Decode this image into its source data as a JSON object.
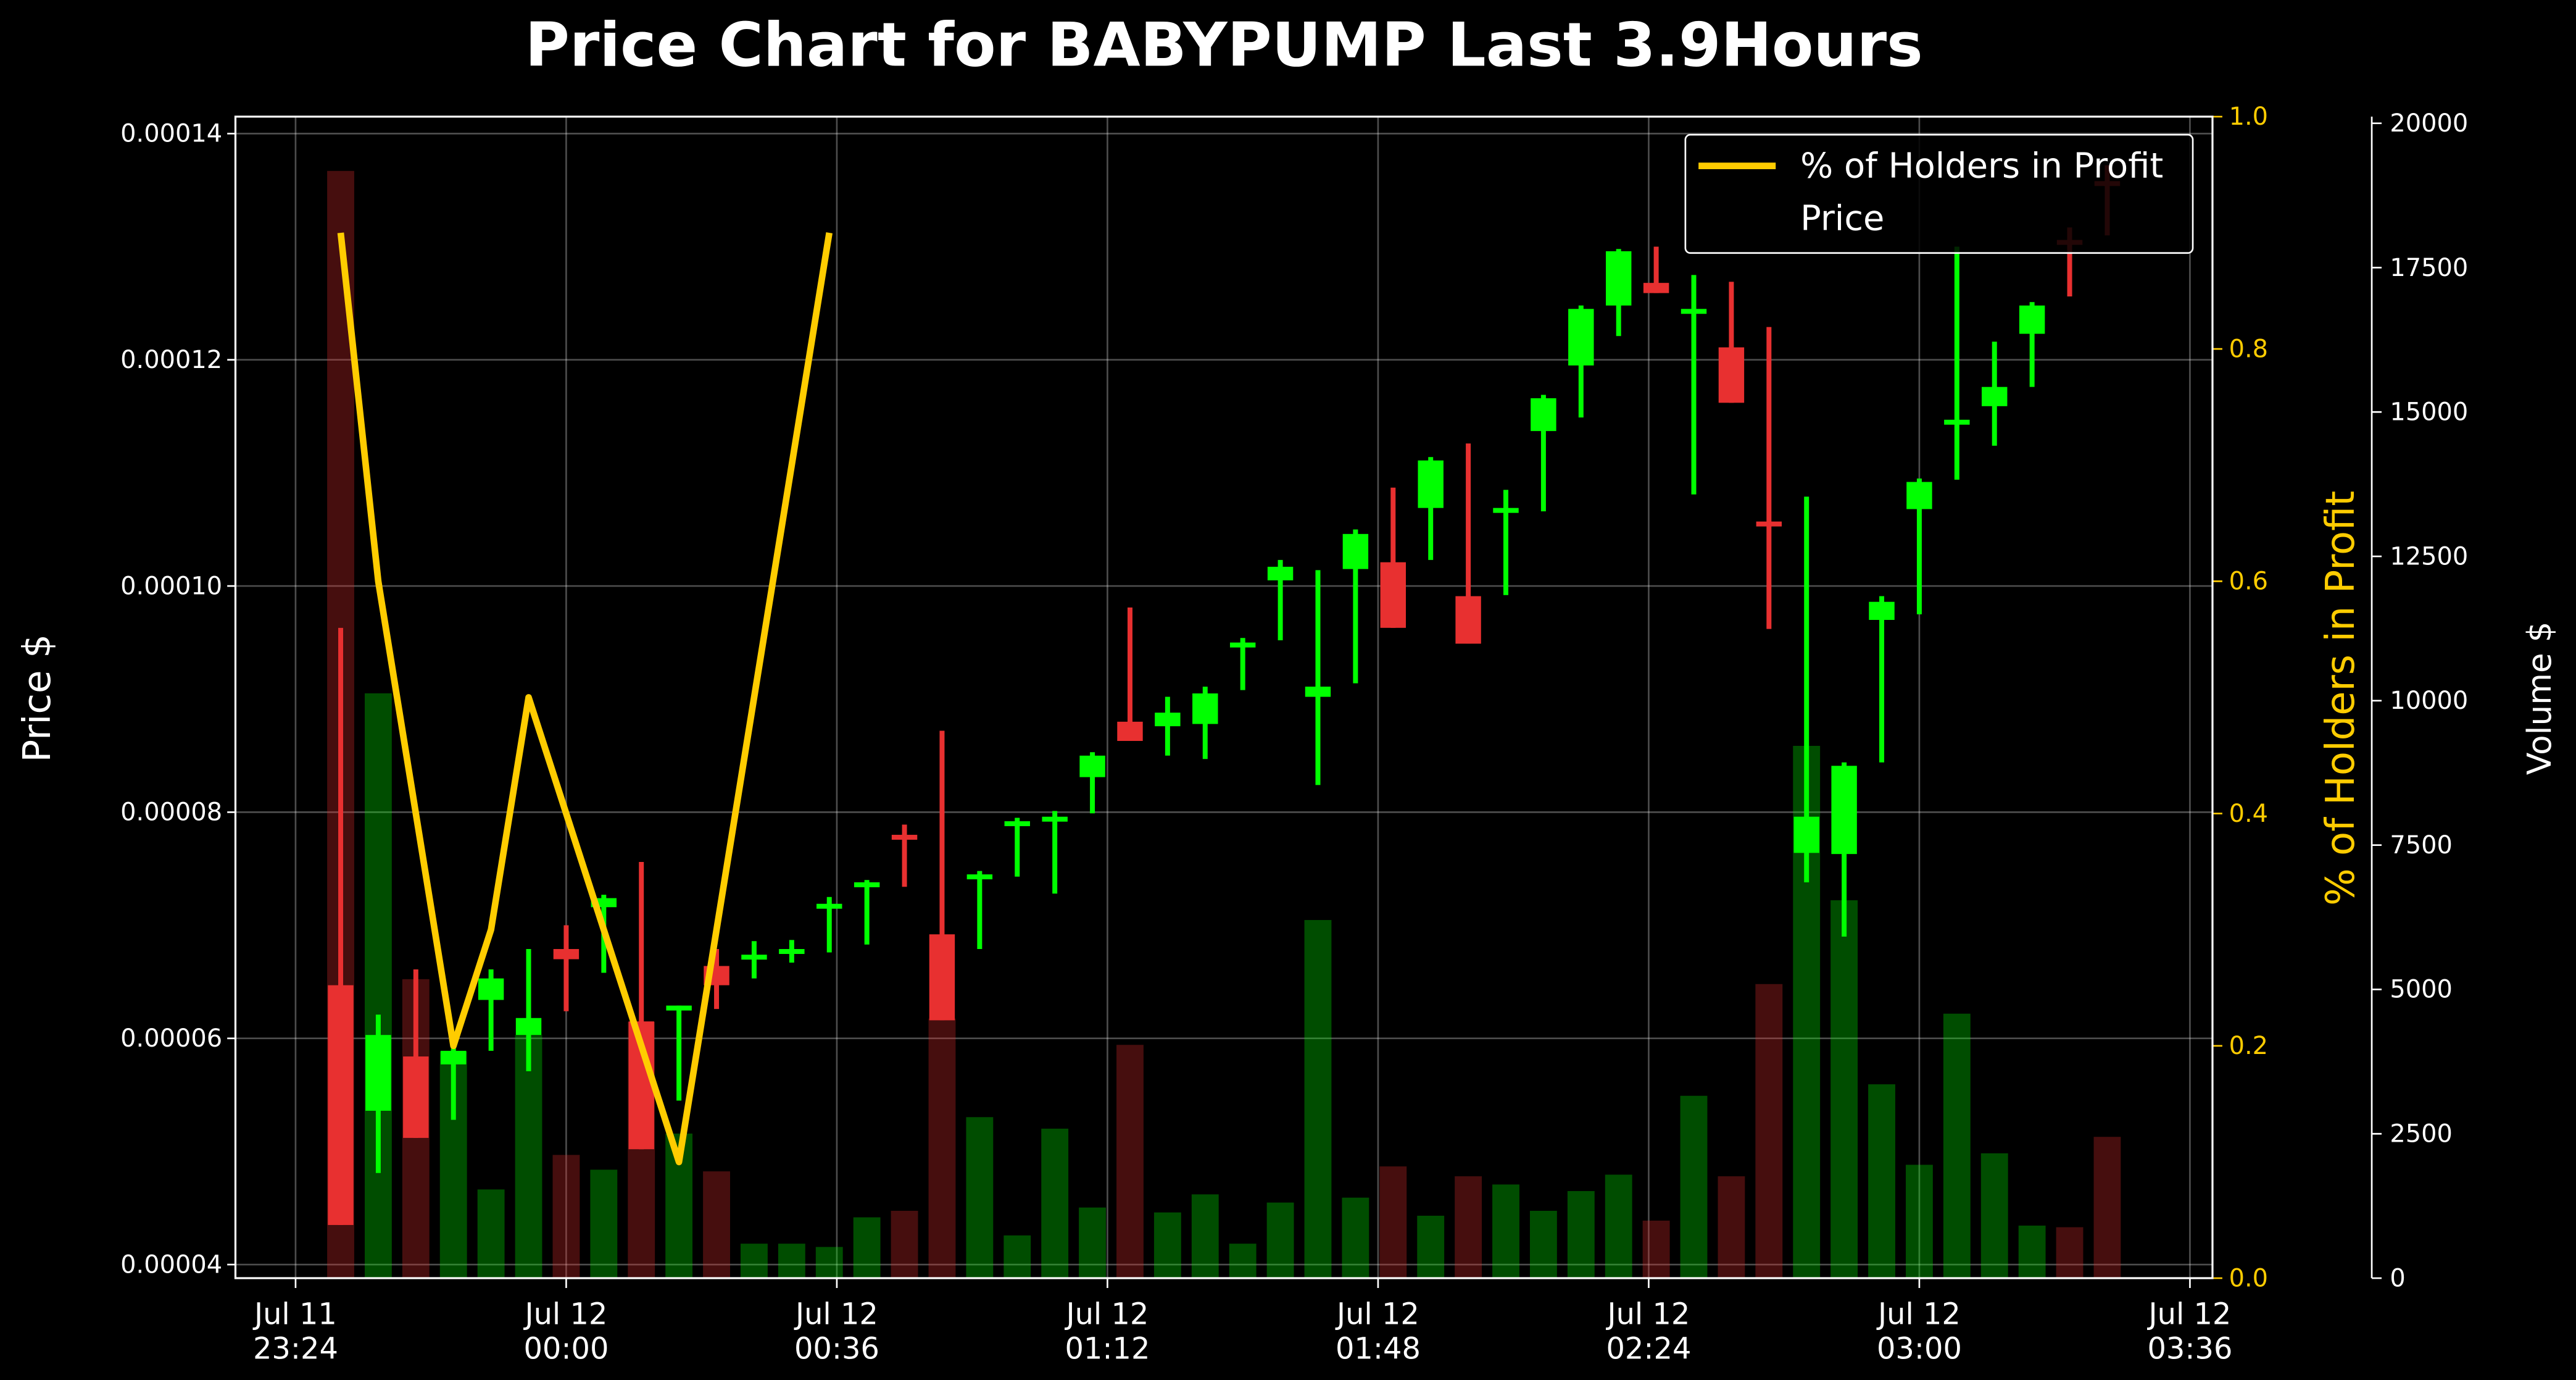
{
  "chart_data": {
    "type": "candlestick",
    "title": "Price Chart for BABYPUMP Last 3.9Hours",
    "ylabel": "Price $",
    "y2label": "% of Holders in Profit",
    "y3label": "Volume $",
    "x": [
      "Jul 11 23:30",
      "Jul 11 23:35",
      "Jul 11 23:40",
      "Jul 11 23:45",
      "Jul 11 23:50",
      "Jul 11 23:55",
      "Jul 12 00:00",
      "Jul 12 00:05",
      "Jul 12 00:10",
      "Jul 12 00:15",
      "Jul 12 00:20",
      "Jul 12 00:25",
      "Jul 12 00:30",
      "Jul 12 00:35",
      "Jul 12 00:40",
      "Jul 12 00:45",
      "Jul 12 00:50",
      "Jul 12 00:55",
      "Jul 12 01:00",
      "Jul 12 01:05",
      "Jul 12 01:10",
      "Jul 12 01:15",
      "Jul 12 01:20",
      "Jul 12 01:25",
      "Jul 12 01:30",
      "Jul 12 01:35",
      "Jul 12 01:40",
      "Jul 12 01:45",
      "Jul 12 01:50",
      "Jul 12 01:55",
      "Jul 12 02:00",
      "Jul 12 02:05",
      "Jul 12 02:10",
      "Jul 12 02:15",
      "Jul 12 02:20",
      "Jul 12 02:25",
      "Jul 12 02:30",
      "Jul 12 02:35",
      "Jul 12 02:40",
      "Jul 12 02:45",
      "Jul 12 02:50",
      "Jul 12 02:55",
      "Jul 12 03:00",
      "Jul 12 03:05",
      "Jul 12 03:10",
      "Jul 12 03:15",
      "Jul 12 03:20",
      "Jul 12 03:25"
    ],
    "xlim": [
      "Jul 11 23:16",
      "Jul 12 03:39"
    ],
    "xticks": [
      {
        "value": "Jul 11 23:24",
        "label": "Jul 11\n23:24"
      },
      {
        "value": "Jul 12 00:00",
        "label": "Jul 12\n00:00"
      },
      {
        "value": "Jul 12 00:36",
        "label": "Jul 12\n00:36"
      },
      {
        "value": "Jul 12 01:12",
        "label": "Jul 12\n01:12"
      },
      {
        "value": "Jul 12 01:48",
        "label": "Jul 12\n01:48"
      },
      {
        "value": "Jul 12 02:24",
        "label": "Jul 12\n02:24"
      },
      {
        "value": "Jul 12 03:00",
        "label": "Jul 12\n03:00"
      },
      {
        "value": "Jul 12 03:36",
        "label": "Jul 12\n03:36"
      }
    ],
    "ylim": [
      3.88e-05,
      0.0001415
    ],
    "yticks": [
      4e-05,
      6e-05,
      8e-05,
      {
        "value": 0.0001,
        "label": "0.00010"
      },
      0.00012,
      0.00014
    ],
    "y2lim": [
      0,
      1
    ],
    "y2ticks": [
      {
        "value": 0,
        "label": "0.0"
      },
      {
        "value": 0.2,
        "label": "0.2"
      },
      {
        "value": 0.4,
        "label": "0.4"
      },
      {
        "value": 0.6,
        "label": "0.6"
      },
      {
        "value": 0.8,
        "label": "0.8"
      },
      {
        "value": 1,
        "label": "1.0"
      }
    ],
    "y3lim": [
      0,
      20115
    ],
    "y3ticks": [
      0,
      2500,
      5000,
      7500,
      10000,
      12500,
      15000,
      17500,
      20000
    ],
    "grid": true,
    "legend": "upper right",
    "y2color": "#ffcc00",
    "series": [
      {
        "name": "% of Holders in Profit",
        "type": "line",
        "axis": "y2",
        "color": "#ffcc00",
        "values": [
          0.9,
          0.6,
          0.4,
          0.2,
          0.3,
          0.5,
          0.4,
          0.3,
          0.2,
          0.1,
          0.3,
          0.5,
          0.7,
          0.9,
          null,
          null,
          null,
          null,
          null,
          null,
          null,
          null,
          null,
          null,
          null,
          null,
          null,
          null,
          null,
          null,
          null,
          null,
          null,
          null,
          null,
          null,
          null,
          null,
          null,
          null,
          null,
          null,
          null,
          null,
          null,
          null,
          null,
          null
        ]
      },
      {
        "name": "Price",
        "type": "candlestick",
        "up_color": "#00ff00",
        "down_color": "#e83030",
        "open": [
          6.47e-05,
          5.36e-05,
          5.84e-05,
          5.77e-05,
          6.34e-05,
          6.03e-05,
          6.79e-05,
          7.16e-05,
          6.15e-05,
          6.26e-05,
          6.64e-05,
          6.71e-05,
          6.76e-05,
          7.16e-05,
          7.35e-05,
          7.8e-05,
          6.92e-05,
          7.41e-05,
          7.89e-05,
          7.93e-05,
          8.31e-05,
          8.8e-05,
          8.76e-05,
          8.78e-05,
          9.47e-05,
          0.0001005,
          9.02e-05,
          0.0001015,
          0.0001021,
          0.0001069,
          9.91e-05,
          0.0001066,
          0.0001137,
          0.0001195,
          0.0001248,
          0.0001268,
          0.0001242,
          0.0001211,
          0.0001057,
          7.64e-05,
          7.63e-05,
          9.7e-05,
          0.0001068,
          0.0001143,
          0.0001159,
          0.0001223,
          0.0001306,
          0.0001358
        ],
        "high": [
          9.63e-05,
          6.21e-05,
          6.61e-05,
          6.06e-05,
          6.61e-05,
          6.79e-05,
          7e-05,
          7.27e-05,
          7.56e-05,
          6.29e-05,
          6.79e-05,
          6.86e-05,
          6.87e-05,
          7.25e-05,
          7.4e-05,
          7.89e-05,
          8.72e-05,
          7.48e-05,
          7.95e-05,
          8.01e-05,
          8.53e-05,
          9.81e-05,
          9.02e-05,
          9.11e-05,
          9.54e-05,
          0.0001023,
          0.0001014,
          0.000105,
          0.0001087,
          0.0001114,
          0.0001126,
          0.0001085,
          0.0001169,
          0.0001248,
          0.0001298,
          0.00013,
          0.0001275,
          0.0001269,
          0.0001229,
          0.0001079,
          8.44e-05,
          9.91e-05,
          0.0001095,
          0.00013,
          0.0001216,
          0.0001251,
          0.0001317,
          0.0001372
        ],
        "low": [
          4.35e-05,
          4.81e-05,
          5.12e-05,
          5.28e-05,
          5.89e-05,
          5.71e-05,
          6.24e-05,
          6.58e-05,
          5.02e-05,
          5.45e-05,
          6.26e-05,
          6.53e-05,
          6.67e-05,
          6.76e-05,
          6.83e-05,
          7.34e-05,
          6.16e-05,
          6.79e-05,
          7.43e-05,
          7.28e-05,
          7.99e-05,
          8.63e-05,
          8.5e-05,
          8.47e-05,
          9.08e-05,
          9.52e-05,
          8.24e-05,
          9.14e-05,
          9.63e-05,
          0.0001023,
          9.49e-05,
          9.92e-05,
          0.0001066,
          0.0001149,
          0.0001221,
          0.0001259,
          0.0001081,
          0.0001162,
          9.62e-05,
          7.38e-05,
          6.9e-05,
          8.44e-05,
          9.75e-05,
          0.0001094,
          0.0001124,
          0.0001176,
          0.0001256,
          0.000131
        ],
        "close": [
          4.35e-05,
          6.03e-05,
          5.12e-05,
          5.89e-05,
          6.53e-05,
          6.18e-05,
          6.7e-05,
          7.24e-05,
          5.02e-05,
          6.29e-05,
          6.47e-05,
          6.74e-05,
          6.79e-05,
          7.19e-05,
          7.38e-05,
          7.76e-05,
          6.16e-05,
          7.45e-05,
          7.92e-05,
          7.96e-05,
          8.5e-05,
          8.63e-05,
          8.88e-05,
          9.05e-05,
          9.5e-05,
          0.0001017,
          9.11e-05,
          0.0001046,
          9.63e-05,
          0.0001111,
          9.49e-05,
          0.0001069,
          0.0001166,
          0.0001245,
          0.0001296,
          0.0001259,
          0.0001245,
          0.0001162,
          0.0001055,
          7.96e-05,
          8.41e-05,
          9.86e-05,
          0.0001092,
          0.0001147,
          0.0001176,
          0.0001248,
          0.0001303,
          0.0001355
        ]
      },
      {
        "type": "bar",
        "axis": "y3",
        "values": [
          19175,
          10128,
          5178,
          3926,
          1536,
          4211,
          2134,
          1878,
          4438,
          2504,
          1849,
          597,
          597,
          540,
          1053,
          1166,
          4495,
          2788,
          740,
          2589,
          1223,
          4040,
          1138,
          1451,
          597,
          1309,
          6202,
          1394,
          1935,
          1081,
          1764,
          1622,
          1166,
          1508,
          1792,
          996,
          3158,
          1764,
          5093,
          9218,
          6544,
          3357,
          1963,
          4580,
          2162,
          910,
          882,
          2447
        ]
      }
    ]
  }
}
